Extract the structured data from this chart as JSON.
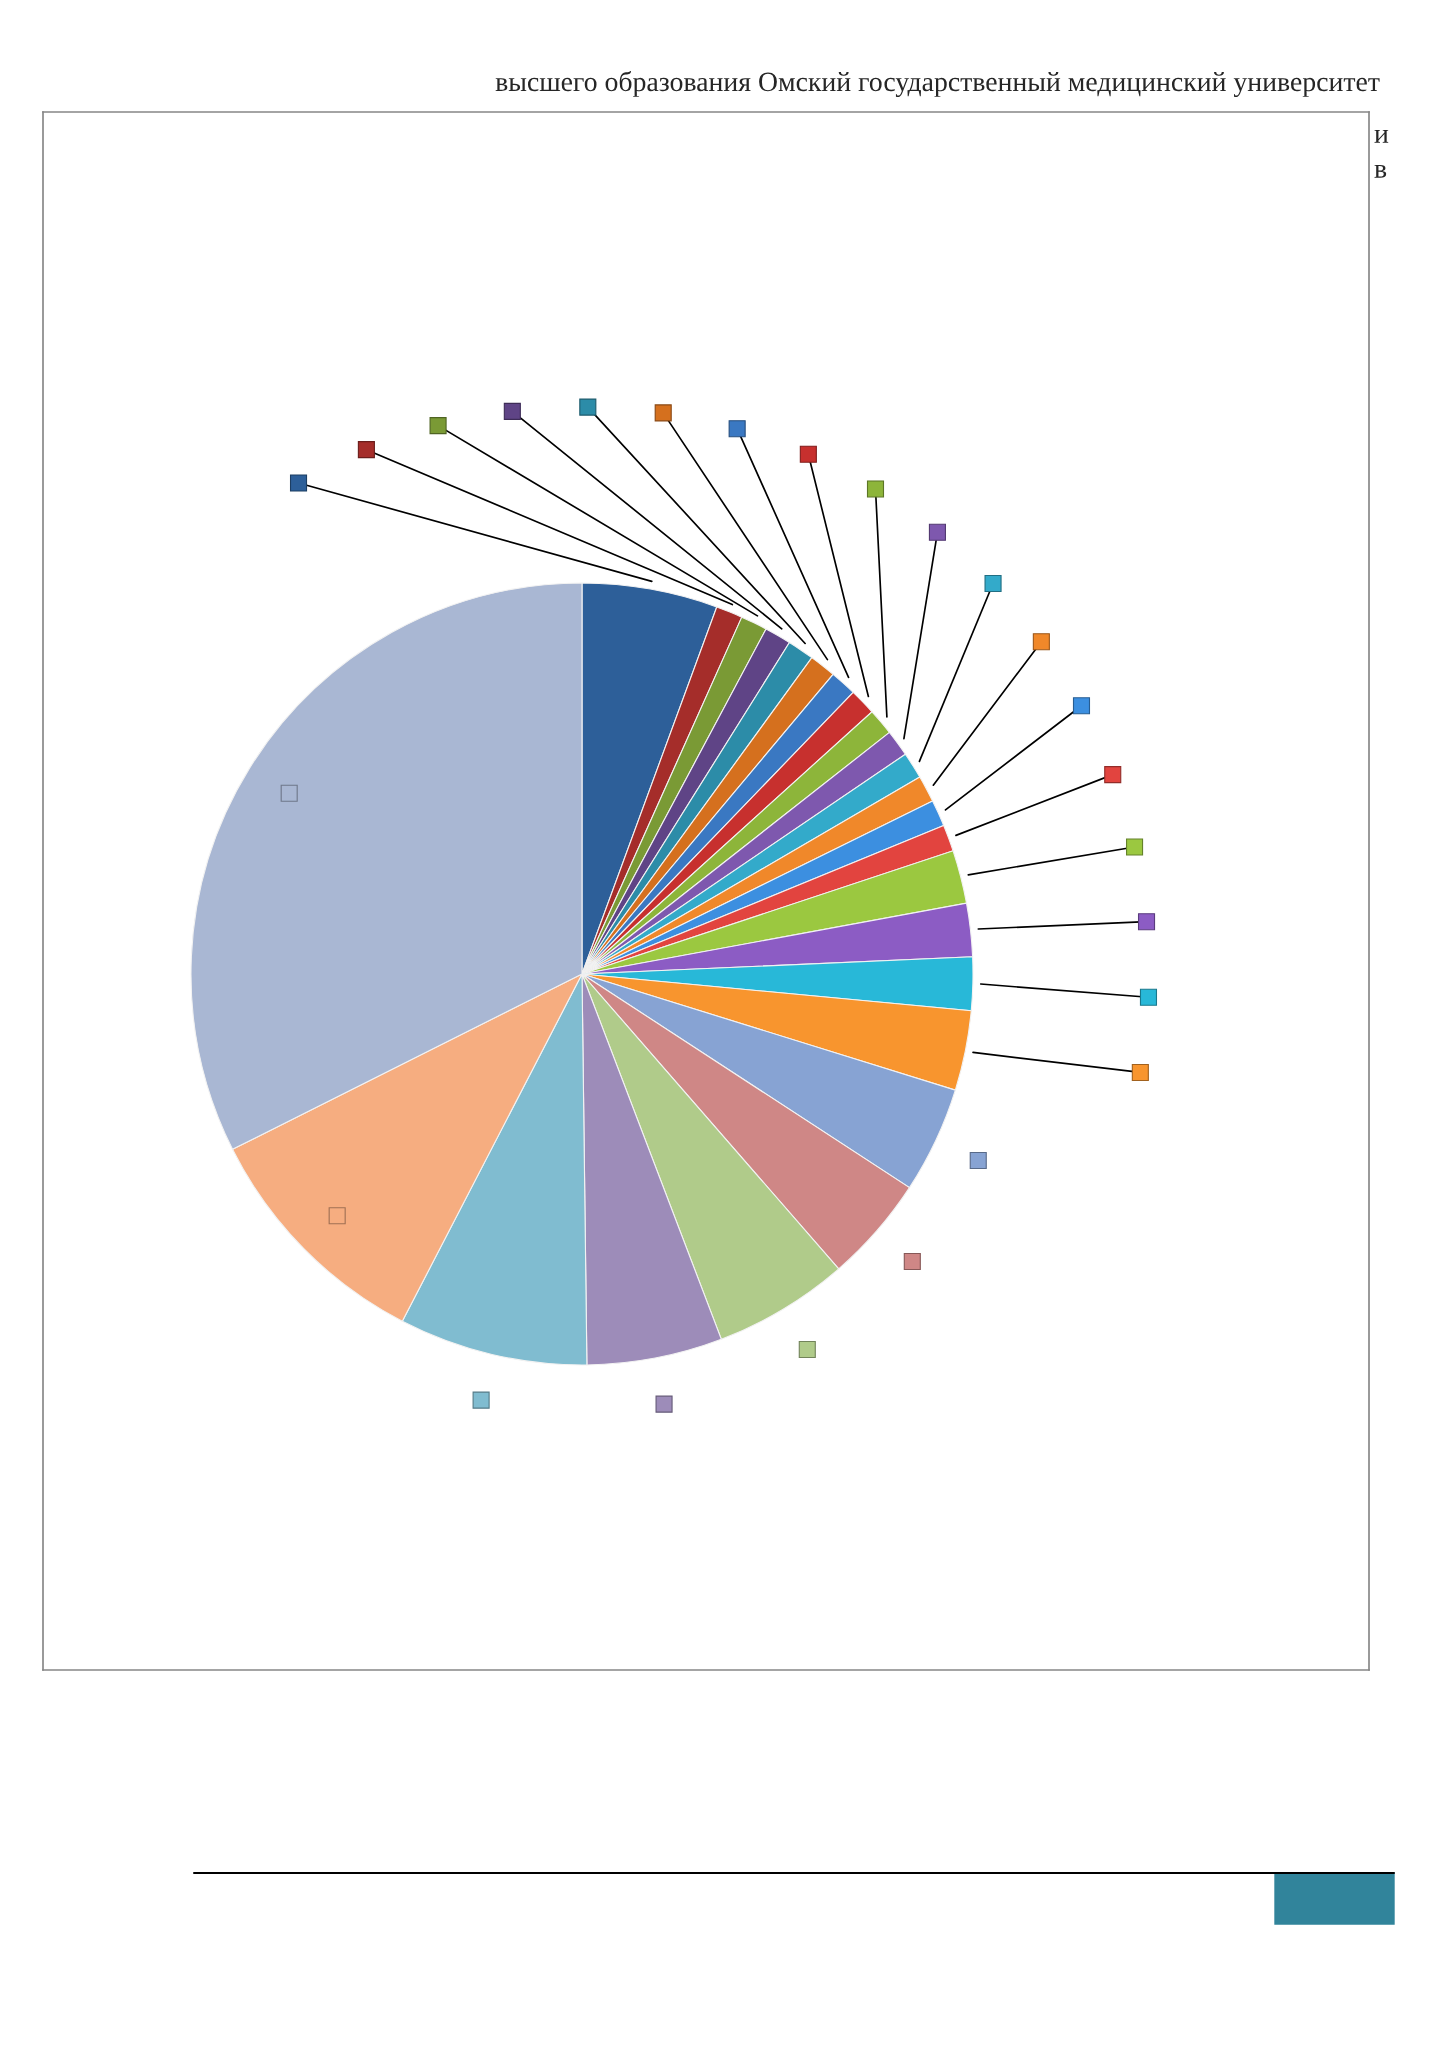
{
  "chart_data": {
    "type": "pie",
    "categories": [
      null,
      null,
      null,
      null,
      null,
      null,
      null,
      null,
      null,
      null,
      null,
      null,
      null,
      null,
      null,
      null,
      null,
      null,
      null,
      null,
      null,
      null,
      null,
      null,
      null
    ],
    "values": [
      5.6,
      1.1,
      1.1,
      1.1,
      1.1,
      1.1,
      1.1,
      1.1,
      1.1,
      1.1,
      1.1,
      1.1,
      1.1,
      1.1,
      2.2,
      2.2,
      2.2,
      3.3,
      4.4,
      4.4,
      5.6,
      5.6,
      7.8,
      10.0,
      32.4
    ],
    "colors": [
      "#2d5f99",
      "#a52d2a",
      "#7a9a35",
      "#5f4486",
      "#2c8ca8",
      "#d5701e",
      "#3a78c2",
      "#c7302e",
      "#8db53a",
      "#7e58ae",
      "#33aaca",
      "#f0882a",
      "#3c8fe0",
      "#e2443f",
      "#9bc840",
      "#8c5cc4",
      "#28b8d8",
      "#f8952e",
      "#87a3d3",
      "#cf8786",
      "#b0cb8a",
      "#9d8cb9",
      "#80bcd0",
      "#f6ad80",
      "#a9b7d3"
    ],
    "annotations": [
      "высшего образования Омский государственный медицинский университет",
      "и",
      "в"
    ]
  }
}
